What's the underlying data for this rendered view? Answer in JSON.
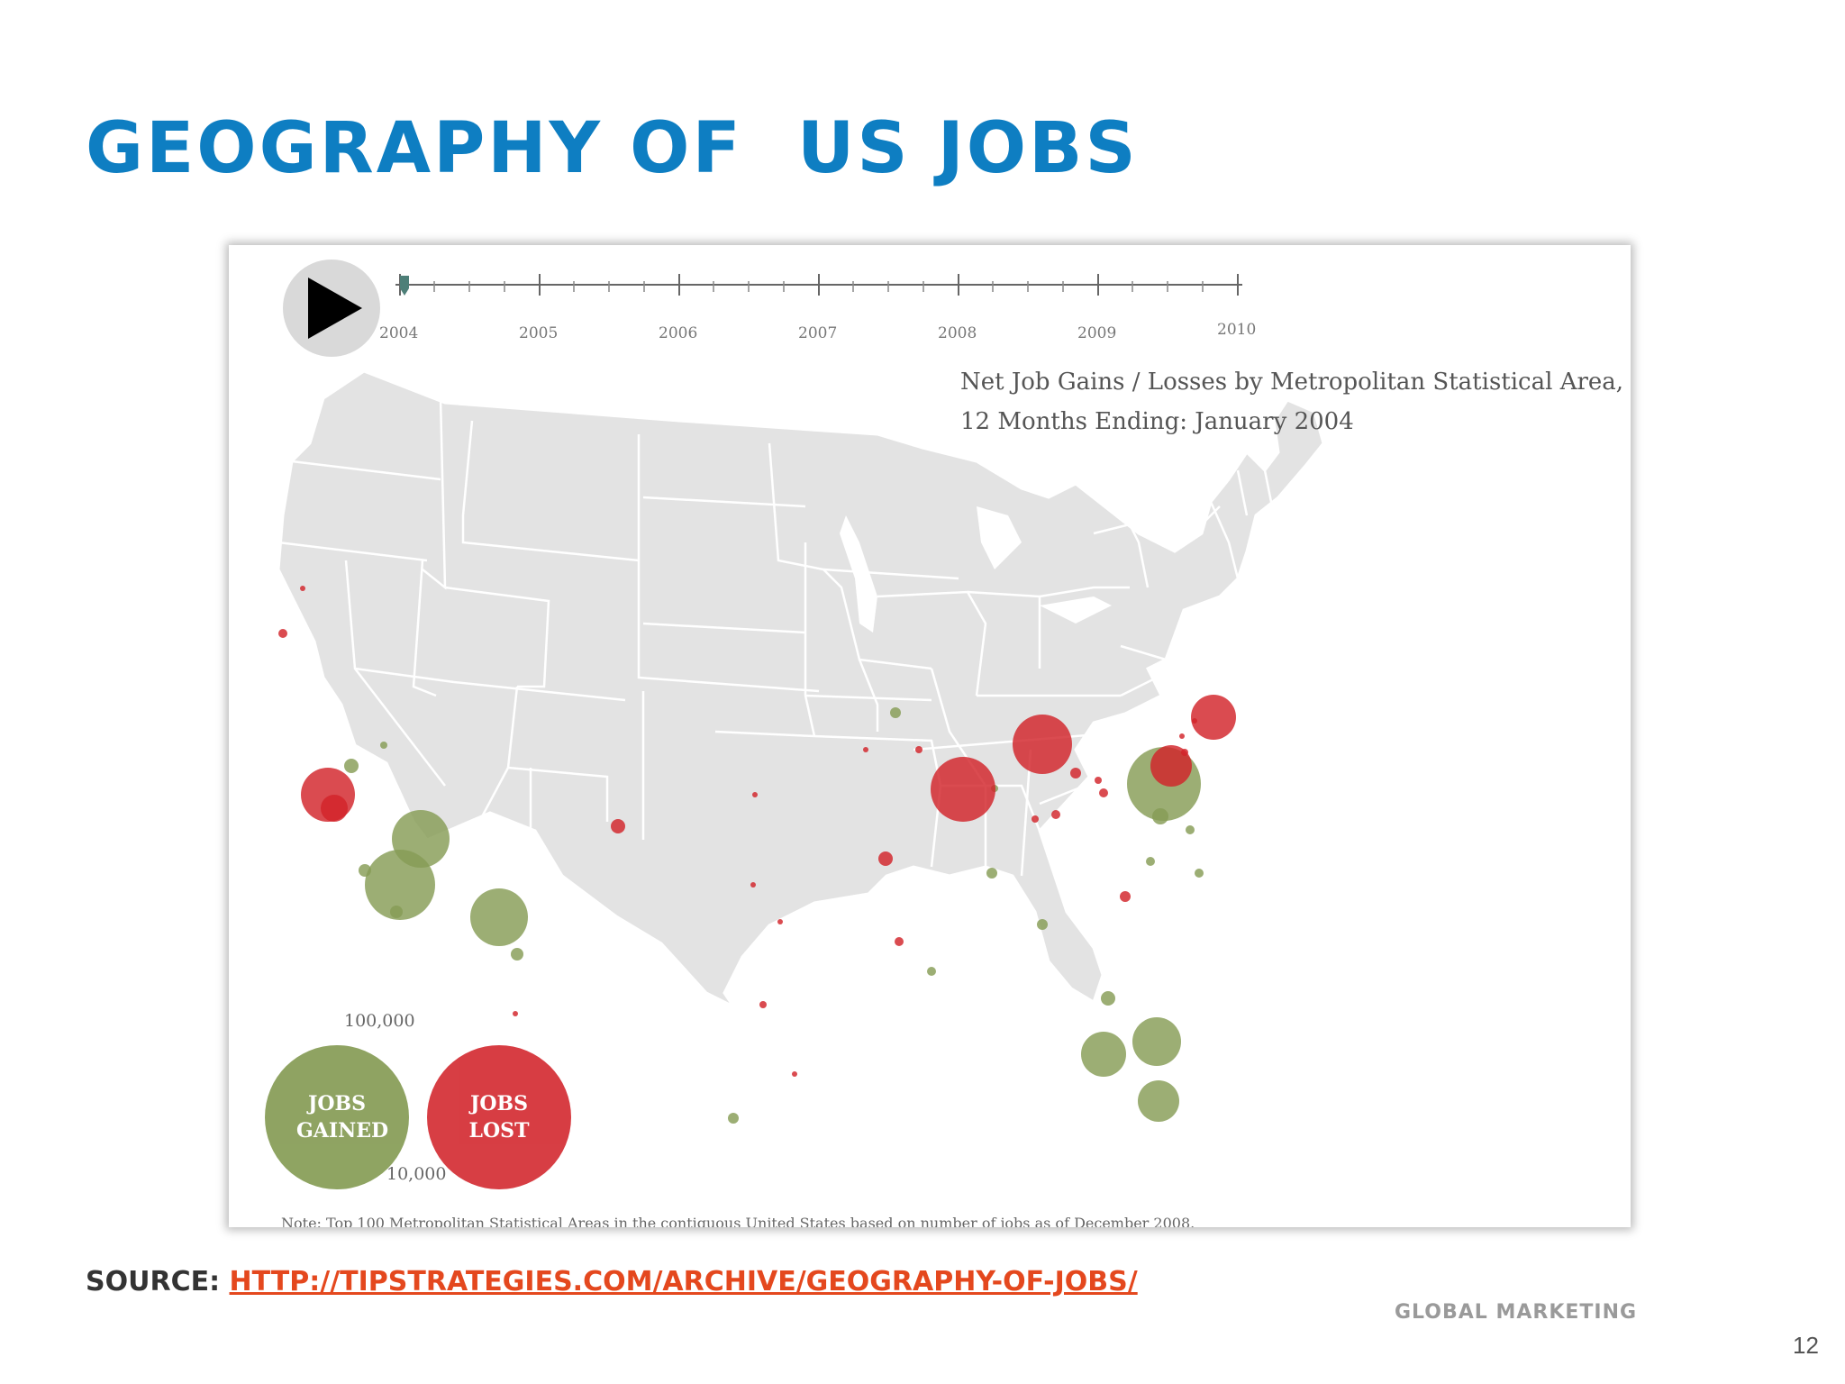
{
  "slide": {
    "title": "Geography of  US Jobs",
    "source_label": "Source:",
    "source_link": "http://tipstrategies.com/archive/geography-of-jobs/",
    "footer": "Global Marketing",
    "page_number": "12"
  },
  "figure": {
    "timeline_years": [
      "2004",
      "2005",
      "2006",
      "2007",
      "2008",
      "2009",
      "2010"
    ],
    "current_year": "2004",
    "title_line1": "Net Job Gains / Losses by  Metropolitan Statistical Area,",
    "title_line2": "12 Months Ending:  January  2004",
    "legend": {
      "large_value": "100,000",
      "small_value": "10,000",
      "gained_label": "JOBS GAINED",
      "lost_label": "JOBS LOST"
    },
    "note": "Note: Top 100 Metropolitan Statistical Areas in the contiguous United States based on number of jobs as of December 2008.",
    "colors": {
      "gain": "#869c55",
      "loss": "#d2232a",
      "land": "#e3e3e3"
    }
  }
}
